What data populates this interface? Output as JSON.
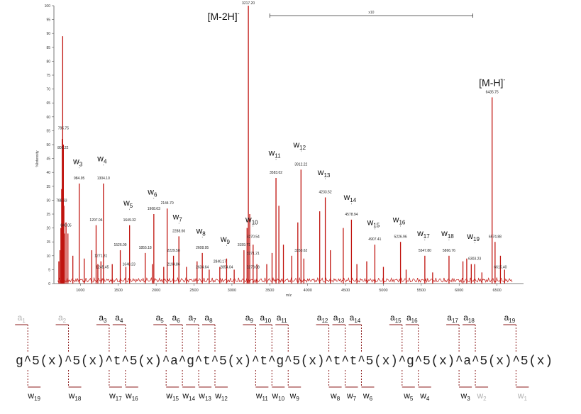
{
  "chart_data": {
    "type": "mass-spectrum",
    "xlabel": "m/z",
    "ylabel": "%Intensity",
    "xlim": [
      650,
      6850
    ],
    "ylim": [
      0,
      100
    ],
    "xticks": [
      "1000",
      "1500",
      "2000",
      "2500",
      "3000",
      "3500",
      "4000",
      "4500",
      "5000",
      "5500",
      "6000",
      "6500"
    ],
    "yticks": [
      "0",
      "5",
      "10",
      "15",
      "20",
      "25",
      "30",
      "35",
      "40",
      "45",
      "50",
      "55",
      "60",
      "65",
      "70",
      "75",
      "80",
      "85",
      "90",
      "95",
      "100"
    ],
    "bracket_label": "x10",
    "bracket_range": [
      3500,
      6180
    ],
    "ion_labels": [
      {
        "main": "[M-2H]",
        "sup": "-",
        "mz": 3217.2
      },
      {
        "main": "[M-H]",
        "sup": "-",
        "mz": 6435.75
      }
    ],
    "peaks": [
      {
        "mz": 715,
        "i": 8
      },
      {
        "mz": 730,
        "i": 12
      },
      {
        "mz": 742,
        "i": 20
      },
      {
        "mz": 752,
        "i": 34
      },
      {
        "mz": 760,
        "i": 52
      },
      {
        "mz": 766,
        "i": 89
      },
      {
        "mz": 770,
        "i": 40
      },
      {
        "mz": 775,
        "i": 50
      },
      {
        "mz": 782,
        "i": 28
      },
      {
        "mz": 790,
        "i": 18
      },
      {
        "mz": 810,
        "i": 22
      },
      {
        "mz": 835,
        "i": 18
      },
      {
        "mz": 900,
        "i": 10
      },
      {
        "mz": 984,
        "i": 36
      },
      {
        "mz": 1050,
        "i": 9
      },
      {
        "mz": 1150,
        "i": 12
      },
      {
        "mz": 1207,
        "i": 21
      },
      {
        "mz": 1230,
        "i": 7
      },
      {
        "mz": 1271,
        "i": 8
      },
      {
        "mz": 1304,
        "i": 36
      },
      {
        "mz": 1420,
        "i": 7
      },
      {
        "mz": 1526,
        "i": 12
      },
      {
        "mz": 1600,
        "i": 6
      },
      {
        "mz": 1649,
        "i": 21
      },
      {
        "mz": 1855,
        "i": 11
      },
      {
        "mz": 1950,
        "i": 7
      },
      {
        "mz": 1969,
        "i": 25
      },
      {
        "mz": 2100,
        "i": 6
      },
      {
        "mz": 2145,
        "i": 27
      },
      {
        "mz": 2229,
        "i": 10
      },
      {
        "mz": 2300,
        "i": 17
      },
      {
        "mz": 2400,
        "i": 6
      },
      {
        "mz": 2540,
        "i": 8
      },
      {
        "mz": 2609,
        "i": 11
      },
      {
        "mz": 2700,
        "i": 5
      },
      {
        "mz": 2840,
        "i": 6
      },
      {
        "mz": 2930,
        "i": 9
      },
      {
        "mz": 3030,
        "i": 5
      },
      {
        "mz": 3159,
        "i": 12
      },
      {
        "mz": 3200,
        "i": 20
      },
      {
        "mz": 3217,
        "i": 100
      },
      {
        "mz": 3235,
        "i": 25
      },
      {
        "mz": 3280,
        "i": 14
      },
      {
        "mz": 3330,
        "i": 7
      },
      {
        "mz": 3460,
        "i": 7
      },
      {
        "mz": 3530,
        "i": 11
      },
      {
        "mz": 3582,
        "i": 38
      },
      {
        "mz": 3620,
        "i": 28
      },
      {
        "mz": 3680,
        "i": 14
      },
      {
        "mz": 3790,
        "i": 10
      },
      {
        "mz": 3870,
        "i": 22
      },
      {
        "mz": 3912,
        "i": 41
      },
      {
        "mz": 3950,
        "i": 9
      },
      {
        "mz": 4159,
        "i": 26
      },
      {
        "mz": 4233,
        "i": 31
      },
      {
        "mz": 4300,
        "i": 12
      },
      {
        "mz": 4470,
        "i": 20
      },
      {
        "mz": 4578,
        "i": 23
      },
      {
        "mz": 4650,
        "i": 7
      },
      {
        "mz": 4780,
        "i": 8
      },
      {
        "mz": 4887,
        "i": 14
      },
      {
        "mz": 5000,
        "i": 6
      },
      {
        "mz": 5226,
        "i": 15
      },
      {
        "mz": 5300,
        "i": 5
      },
      {
        "mz": 5547,
        "i": 10
      },
      {
        "mz": 5650,
        "i": 4
      },
      {
        "mz": 5866,
        "i": 10
      },
      {
        "mz": 6050,
        "i": 8
      },
      {
        "mz": 6100,
        "i": 9
      },
      {
        "mz": 6160,
        "i": 7
      },
      {
        "mz": 6205,
        "i": 7
      },
      {
        "mz": 6300,
        "i": 4
      },
      {
        "mz": 6435,
        "i": 67
      },
      {
        "mz": 6474,
        "i": 15
      },
      {
        "mz": 6545,
        "i": 10
      },
      {
        "mz": 6600,
        "i": 5
      }
    ],
    "peak_values": [
      {
        "mz": 775,
        "i": 55,
        "text": "795.75"
      },
      {
        "mz": 770,
        "i": 48,
        "text": "802.22"
      },
      {
        "mz": 752,
        "i": 29,
        "text": "788.33"
      },
      {
        "mz": 810,
        "i": 20,
        "text": "840.05"
      },
      {
        "mz": 984,
        "i": 37,
        "text": "984.95"
      },
      {
        "mz": 1207,
        "i": 22,
        "text": "1207.04"
      },
      {
        "mz": 1271,
        "i": 9,
        "text": "1271.31"
      },
      {
        "mz": 1304,
        "i": 37,
        "text": "1304.10"
      },
      {
        "mz": 1290,
        "i": 5,
        "text": "1245.45"
      },
      {
        "mz": 1526,
        "i": 13,
        "text": "1526.09"
      },
      {
        "mz": 1640,
        "i": 6,
        "text": "1640.23"
      },
      {
        "mz": 1649,
        "i": 22,
        "text": "1649.32"
      },
      {
        "mz": 1855,
        "i": 12,
        "text": "1855.18"
      },
      {
        "mz": 1969,
        "i": 26,
        "text": "1968.63"
      },
      {
        "mz": 2145,
        "i": 28,
        "text": "2144.70"
      },
      {
        "mz": 2229,
        "i": 11,
        "text": "2229.58"
      },
      {
        "mz": 2229,
        "i": 6,
        "text": "2194.86"
      },
      {
        "mz": 2300,
        "i": 18,
        "text": "2288.66"
      },
      {
        "mz": 2609,
        "i": 12,
        "text": "2608.95"
      },
      {
        "mz": 2609,
        "i": 5,
        "text": "2634.64"
      },
      {
        "mz": 2840,
        "i": 7,
        "text": "2840.17"
      },
      {
        "mz": 2930,
        "i": 5,
        "text": "2854.04"
      },
      {
        "mz": 3159,
        "i": 13,
        "text": "3159.71"
      },
      {
        "mz": 3217,
        "i": 100,
        "text": "3217.20"
      },
      {
        "mz": 3280,
        "i": 16,
        "text": "3270.54"
      },
      {
        "mz": 3280,
        "i": 10,
        "text": "3271.21"
      },
      {
        "mz": 3280,
        "i": 5,
        "text": "3273.08"
      },
      {
        "mz": 3582,
        "i": 39,
        "text": "3583.02"
      },
      {
        "mz": 3912,
        "i": 42,
        "text": "3912.22"
      },
      {
        "mz": 3912,
        "i": 11,
        "text": "3350.62"
      },
      {
        "mz": 4233,
        "i": 32,
        "text": "4233.52"
      },
      {
        "mz": 4578,
        "i": 24,
        "text": "4578.94"
      },
      {
        "mz": 4887,
        "i": 15,
        "text": "4907.41"
      },
      {
        "mz": 5226,
        "i": 16,
        "text": "5226.96"
      },
      {
        "mz": 5547,
        "i": 11,
        "text": "5547.80"
      },
      {
        "mz": 5866,
        "i": 11,
        "text": "5866.76"
      },
      {
        "mz": 6205,
        "i": 8,
        "text": "6303.23"
      },
      {
        "mz": 6435,
        "i": 68,
        "text": "6435.75"
      },
      {
        "mz": 6474,
        "i": 16,
        "text": "6574.88"
      },
      {
        "mz": 6545,
        "i": 5,
        "text": "6615.40"
      }
    ],
    "w_labels": [
      {
        "sub": "3",
        "mz": 984,
        "i": 41
      },
      {
        "sub": "4",
        "mz": 1304,
        "i": 42
      },
      {
        "sub": "5",
        "mz": 1649,
        "i": 26
      },
      {
        "sub": "6",
        "mz": 1969,
        "i": 30
      },
      {
        "sub": "7",
        "mz": 2300,
        "i": 21
      },
      {
        "sub": "8",
        "mz": 2609,
        "i": 16
      },
      {
        "sub": "9",
        "mz": 2930,
        "i": 13
      },
      {
        "sub": "10",
        "mz": 3280,
        "i": 20
      },
      {
        "sub": "11",
        "mz": 3582,
        "i": 44
      },
      {
        "sub": "12",
        "mz": 3912,
        "i": 47
      },
      {
        "sub": "13",
        "mz": 4233,
        "i": 37
      },
      {
        "sub": "14",
        "mz": 4578,
        "i": 28
      },
      {
        "sub": "15",
        "mz": 4887,
        "i": 19
      },
      {
        "sub": "16",
        "mz": 5226,
        "i": 20
      },
      {
        "sub": "17",
        "mz": 5547,
        "i": 15
      },
      {
        "sub": "18",
        "mz": 5866,
        "i": 15
      },
      {
        "sub": "19",
        "mz": 6205,
        "i": 14
      }
    ]
  },
  "sequence": {
    "text": "g^5(x)^5(x)^t^5(x)^a^g^t^5(x)^t^g^5(x)^t^t^5(x)^g^5(x)^a^5(x)^5(x)",
    "a_ions": [
      {
        "sub": "1",
        "faded": true
      },
      {
        "sub": "2",
        "faded": true
      },
      {
        "sub": "3",
        "faded": false
      },
      {
        "sub": "4",
        "faded": false
      },
      {
        "sub": "5",
        "faded": false
      },
      {
        "sub": "6",
        "faded": false
      },
      {
        "sub": "7",
        "faded": false
      },
      {
        "sub": "8",
        "faded": false
      },
      {
        "sub": "9",
        "faded": false
      },
      {
        "sub": "10",
        "faded": false
      },
      {
        "sub": "11",
        "faded": false
      },
      {
        "sub": "12",
        "faded": false
      },
      {
        "sub": "13",
        "faded": false
      },
      {
        "sub": "14",
        "faded": false
      },
      {
        "sub": "15",
        "faded": false
      },
      {
        "sub": "16",
        "faded": false
      },
      {
        "sub": "17",
        "faded": false
      },
      {
        "sub": "18",
        "faded": false
      },
      {
        "sub": "19",
        "faded": false
      }
    ],
    "w_ions": [
      {
        "sub": "19",
        "faded": false
      },
      {
        "sub": "18",
        "faded": false
      },
      {
        "sub": "17",
        "faded": false
      },
      {
        "sub": "16",
        "faded": false
      },
      {
        "sub": "15",
        "faded": false
      },
      {
        "sub": "14",
        "faded": false
      },
      {
        "sub": "13",
        "faded": false
      },
      {
        "sub": "12",
        "faded": false
      },
      {
        "sub": "11",
        "faded": false
      },
      {
        "sub": "10",
        "faded": false
      },
      {
        "sub": "9",
        "faded": false
      },
      {
        "sub": "8",
        "faded": false
      },
      {
        "sub": "7",
        "faded": false
      },
      {
        "sub": "6",
        "faded": false
      },
      {
        "sub": "5",
        "faded": false
      },
      {
        "sub": "4",
        "faded": false
      },
      {
        "sub": "3",
        "faded": false
      },
      {
        "sub": "2",
        "faded": true
      },
      {
        "sub": "1",
        "faded": true
      }
    ]
  },
  "colors": {
    "peak": "#c0140f",
    "axis": "#555555",
    "cut": "#8b1a1a",
    "faded": "#b0b0b0"
  }
}
